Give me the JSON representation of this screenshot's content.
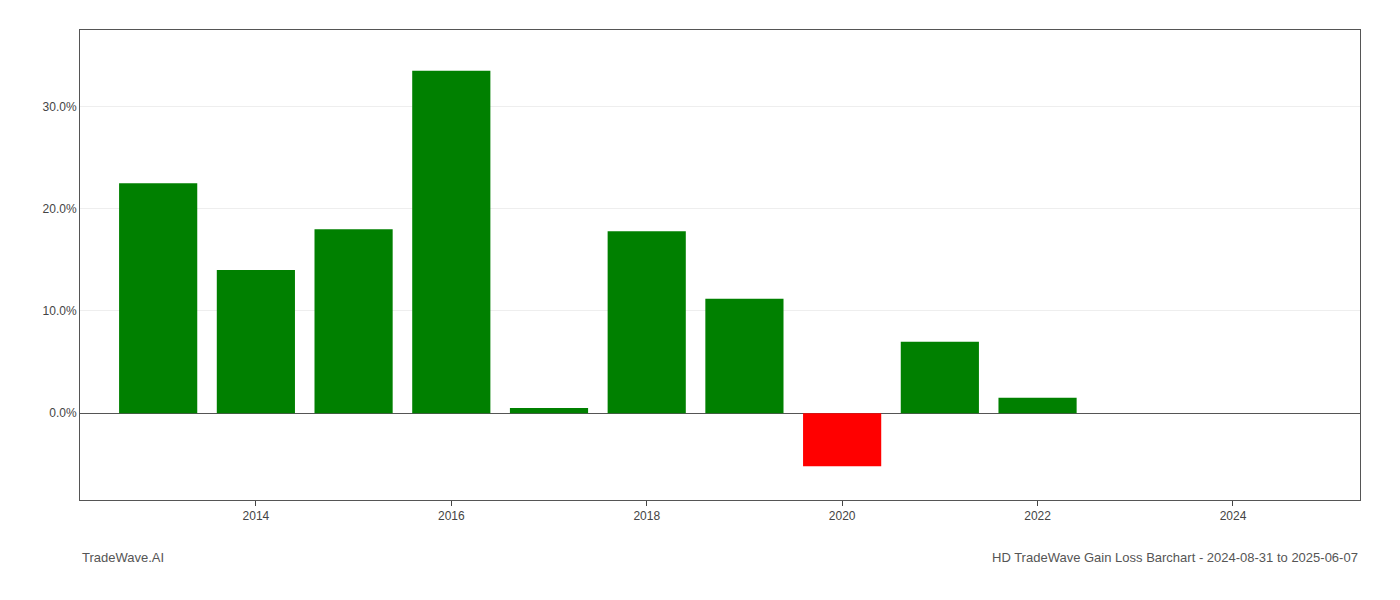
{
  "chart_data": {
    "type": "bar",
    "x": [
      2013,
      2014,
      2015,
      2016,
      2017,
      2018,
      2019,
      2020,
      2021,
      2022,
      2023
    ],
    "values": [
      22.5,
      14.0,
      18.0,
      33.5,
      0.5,
      17.8,
      11.2,
      -5.2,
      7.0,
      1.5,
      0.0
    ],
    "colors": [
      "#008000",
      "#008000",
      "#008000",
      "#008000",
      "#008000",
      "#008000",
      "#008000",
      "#ff0000",
      "#008000",
      "#008000",
      "#008000"
    ],
    "xlim": [
      2012.2,
      2025.3
    ],
    "xticks": [
      2014,
      2016,
      2018,
      2020,
      2022,
      2024
    ],
    "ylim": [
      -8.5,
      37.5
    ],
    "yticks": [
      {
        "value": 0.0,
        "label": "0.0%"
      },
      {
        "value": 10.0,
        "label": "10.0%"
      },
      {
        "value": 20.0,
        "label": "20.0%"
      },
      {
        "value": 30.0,
        "label": "30.0%"
      }
    ],
    "grid": true,
    "annotations": [
      "TradeWave.AI",
      "HD TradeWave Gain Loss Barchart - 2024-08-31 to 2025-06-07"
    ]
  }
}
